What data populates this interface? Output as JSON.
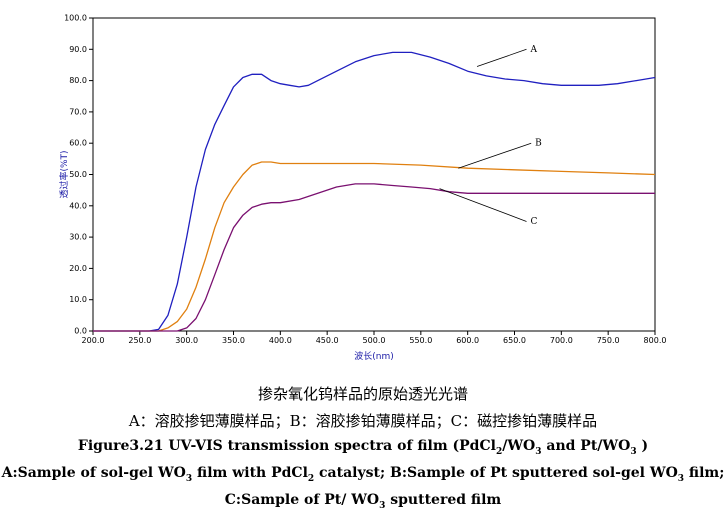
{
  "chart_data": {
    "type": "line",
    "xlabel": "波长(nm)",
    "ylabel": "透过率(%T)",
    "xlim": [
      200,
      800
    ],
    "ylim": [
      0,
      100
    ],
    "grid": false,
    "x_ticks": [
      "200.0",
      "250.0",
      "300.0",
      "350.0",
      "400.0",
      "450.0",
      "500.0",
      "550.0",
      "600.0",
      "650.0",
      "700.0",
      "750.0",
      "800.0"
    ],
    "y_ticks": [
      "0.0",
      "10.0",
      "20.0",
      "30.0",
      "40.0",
      "50.0",
      "60.0",
      "70.0",
      "80.0",
      "90.0",
      "100.0"
    ],
    "x_tick_values": [
      200,
      250,
      300,
      350,
      400,
      450,
      500,
      550,
      600,
      650,
      700,
      750,
      800
    ],
    "y_tick_values": [
      0,
      10,
      20,
      30,
      40,
      50,
      60,
      70,
      80,
      90,
      100
    ],
    "series": [
      {
        "name": "A",
        "color": "#2020c0",
        "x": [
          200,
          260,
          270,
          280,
          290,
          300,
          310,
          320,
          330,
          340,
          350,
          360,
          370,
          380,
          390,
          400,
          410,
          420,
          430,
          440,
          460,
          480,
          500,
          520,
          540,
          560,
          580,
          600,
          620,
          640,
          660,
          680,
          700,
          720,
          740,
          760,
          780,
          800
        ],
        "y": [
          0,
          0,
          0.5,
          5,
          15,
          30,
          46,
          58,
          66,
          72,
          78,
          81,
          82,
          82,
          80,
          79,
          78.5,
          78,
          78.5,
          80,
          83,
          86,
          88,
          89,
          89,
          87.5,
          85.5,
          83,
          81.5,
          80.5,
          80,
          79,
          78.5,
          78.5,
          78.5,
          79,
          80,
          81
        ]
      },
      {
        "name": "B",
        "color": "#e08010",
        "x": [
          200,
          270,
          280,
          290,
          300,
          310,
          320,
          330,
          340,
          350,
          360,
          370,
          380,
          390,
          400,
          420,
          450,
          500,
          550,
          600,
          650,
          700,
          750,
          800
        ],
        "y": [
          0,
          0,
          1,
          3,
          7,
          14,
          23,
          33,
          41,
          46,
          50,
          53,
          54,
          54,
          53.5,
          53.5,
          53.5,
          53.5,
          53,
          52,
          51.5,
          51,
          50.5,
          50
        ]
      },
      {
        "name": "C",
        "color": "#7a1070",
        "x": [
          200,
          290,
          300,
          310,
          320,
          330,
          340,
          350,
          360,
          370,
          380,
          390,
          400,
          420,
          440,
          460,
          480,
          500,
          520,
          540,
          560,
          580,
          600,
          650,
          700,
          750,
          800
        ],
        "y": [
          0,
          0,
          1,
          4,
          10,
          18,
          26,
          33,
          37,
          39.5,
          40.5,
          41,
          41,
          42,
          44,
          46,
          47,
          47,
          46.5,
          46,
          45.5,
          44.5,
          44,
          44,
          44,
          44,
          44
        ]
      }
    ],
    "annotations": [
      {
        "label": "A",
        "x": 650,
        "y": 90
      },
      {
        "label": "B",
        "x": 655,
        "y": 60
      },
      {
        "label": "C",
        "x": 650,
        "y": 35
      }
    ]
  },
  "caption": {
    "cn_title": "掺杂氧化钨样品的原始透光光谱",
    "cn_legend": "A：溶胶掺钯薄膜样品；B：溶胶掺铂薄膜样品；C：磁控掺铂薄膜样品",
    "fig_a": "Figure3.21 UV-VIS transmission spectra of film (PdCl",
    "fig_b": "2",
    "fig_c": "/WO",
    "fig_d": "3",
    "fig_e": " and Pt/WO",
    "fig_f": "3",
    "fig_g": " )",
    "a_1": "A:Sample of sol-gel WO",
    "a_2": "3",
    "a_3": " film with PdCl",
    "a_4": "2",
    "a_5": " catalyst; B:Sample of Pt sputtered sol-gel WO",
    "a_6": "3",
    "a_7": " film;",
    "c_1": "C:Sample of Pt/ WO",
    "c_2": "3",
    "c_3": " sputtered film"
  }
}
